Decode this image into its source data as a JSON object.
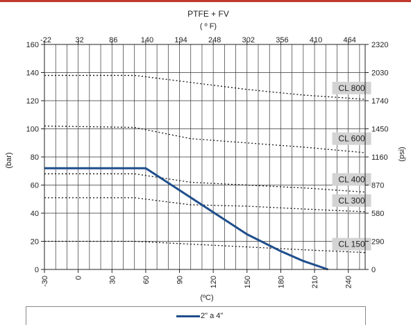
{
  "chart_data": {
    "type": "line",
    "title": "PTFE + FV",
    "top_axis_label": "( º F)",
    "xlabel": "(ºC)",
    "ylabel_left": "(bar)",
    "ylabel_right": "(psi)",
    "xlim": [
      -30,
      255
    ],
    "ylim": [
      0,
      160
    ],
    "x_ticks": [
      -30,
      0,
      30,
      60,
      90,
      120,
      150,
      180,
      210,
      240
    ],
    "x_tick_labels": [
      "-30",
      "0",
      "30",
      "60",
      "90",
      "120",
      "150",
      "180",
      "210",
      "240"
    ],
    "y_ticks": [
      0,
      20,
      40,
      60,
      80,
      100,
      120,
      140,
      160
    ],
    "y_tick_labels": [
      "0",
      "20",
      "40",
      "60",
      "80",
      "100",
      "120",
      "140",
      "160"
    ],
    "top_ticks": [
      {
        "label": "-22",
        "x": -30
      },
      {
        "label": "32",
        "x": 0
      },
      {
        "label": "86",
        "x": 30
      },
      {
        "label": "140",
        "x": 60
      },
      {
        "label": "194",
        "x": 90
      },
      {
        "label": "248",
        "x": 120
      },
      {
        "label": "302",
        "x": 150
      },
      {
        "label": "356",
        "x": 180
      },
      {
        "label": "410",
        "x": 210
      },
      {
        "label": "464",
        "x": 240
      }
    ],
    "right_ticks": [
      {
        "label": "0",
        "y": 0
      },
      {
        "label": "290",
        "y": 20
      },
      {
        "label": "580",
        "y": 40
      },
      {
        "label": "870",
        "y": 60
      },
      {
        "label": "1160",
        "y": 80
      },
      {
        "label": "1450",
        "y": 100
      },
      {
        "label": "1740",
        "y": 120
      },
      {
        "label": "2030",
        "y": 140
      },
      {
        "label": "2320",
        "y": 160
      }
    ],
    "grid": true,
    "series": [
      {
        "name": "2\" a 4\"",
        "color": "#1f4e8c",
        "x": [
          -30,
          60,
          150,
          180,
          200,
          222
        ],
        "y": [
          72,
          72,
          25,
          13,
          6,
          0
        ]
      }
    ],
    "class_lines": [
      {
        "label": "CL 800",
        "x": [
          -30,
          50,
          100,
          150,
          200,
          255
        ],
        "y": [
          138,
          138,
          133,
          128,
          124,
          121
        ]
      },
      {
        "label": "CL 600",
        "x": [
          -30,
          50,
          100,
          150,
          200,
          255
        ],
        "y": [
          102,
          101,
          93,
          90,
          87,
          83
        ]
      },
      {
        "label": "CL 400",
        "x": [
          -30,
          50,
          100,
          150,
          200,
          255
        ],
        "y": [
          68,
          68,
          62,
          60,
          58,
          55
        ]
      },
      {
        "label": "CL 300",
        "x": [
          -30,
          50,
          100,
          150,
          200,
          255
        ],
        "y": [
          51,
          51,
          46,
          45,
          43,
          41
        ]
      },
      {
        "label": "CL 150",
        "x": [
          -30,
          50,
          100,
          150,
          200,
          255
        ],
        "y": [
          20,
          20,
          18,
          16,
          14,
          12
        ]
      }
    ],
    "class_label_positions": [
      {
        "label": "CL 800",
        "x": 243,
        "y": 129
      },
      {
        "label": "CL 600",
        "x": 243,
        "y": 93
      },
      {
        "label": "CL 400",
        "x": 243,
        "y": 64
      },
      {
        "label": "CL 300",
        "x": 243,
        "y": 49
      },
      {
        "label": "CL 150",
        "x": 243,
        "y": 18
      }
    ],
    "legend": {
      "placement": "bottom",
      "label": "2\" a 4\""
    }
  }
}
